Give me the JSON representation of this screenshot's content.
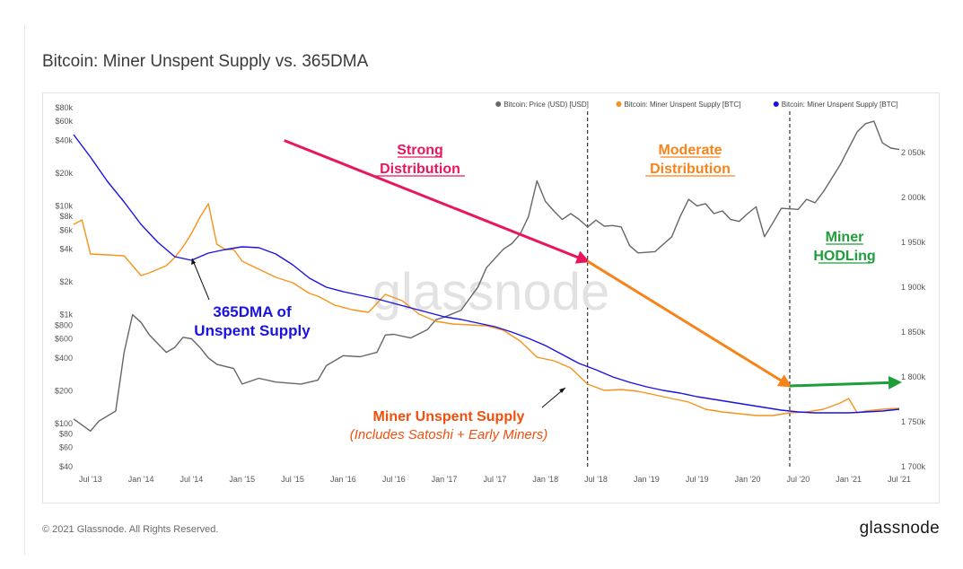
{
  "page": {
    "title": "Bitcoin: Miner Unspent Supply vs. 365DMA",
    "copyright": "© 2021 Glassnode. All Rights Reserved.",
    "brand": "glassnode",
    "watermark": "glassnode"
  },
  "colors": {
    "price": "#666666",
    "unspent": "#f7931a",
    "dma": "#1a12e0",
    "strong_arrow": "#e8175d",
    "moderate_arrow": "#f7841a",
    "hodl_arrow": "#1e9e3a",
    "unspent_label": "#f24e0c"
  },
  "chart_data": {
    "type": "line",
    "legend": [
      {
        "name": "Bitcoin: Price (USD) [USD]",
        "color": "#666666"
      },
      {
        "name": "Bitcoin: Miner Unspent Supply [BTC]",
        "color": "#f7931a"
      },
      {
        "name": "Bitcoin: Miner Unspent Supply [BTC]",
        "color": "#1a12e0"
      }
    ],
    "legend_position": "top-right",
    "x_ticks": [
      "Jul '13",
      "Jan '14",
      "Jul '14",
      "Jan '15",
      "Jul '15",
      "Jan '16",
      "Jul '16",
      "Jan '17",
      "Jul '17",
      "Jan '18",
      "Jul '18",
      "Jan '19",
      "Jul '19",
      "Jan '20",
      "Jul '20",
      "Jan '21",
      "Jul '21"
    ],
    "x_range": [
      "2013-05",
      "2021-07"
    ],
    "left_axis": {
      "scale": "log",
      "range": [
        40,
        80000
      ],
      "ticks": [
        "$40",
        "$60",
        "$80",
        "$100",
        "$200",
        "$400",
        "$600",
        "$800",
        "$1k",
        "$2k",
        "$4k",
        "$6k",
        "$8k",
        "$10k",
        "$20k",
        "$40k",
        "$60k",
        "$80k"
      ]
    },
    "right_axis": {
      "scale": "linear",
      "range": [
        1700000,
        2100000
      ],
      "ticks": [
        "1 700k",
        "1 750k",
        "1 800k",
        "1 850k",
        "1 900k",
        "1 950k",
        "2 000k",
        "2 050k"
      ]
    },
    "series": [
      {
        "name": "Bitcoin: Price (USD) [USD]",
        "axis": "left",
        "x": [
          "2013-05",
          "2013-07",
          "2013-08",
          "2013-10",
          "2013-11",
          "2013-12",
          "2014-01",
          "2014-02",
          "2014-04",
          "2014-05",
          "2014-06",
          "2014-07",
          "2014-08",
          "2014-09",
          "2014-10",
          "2014-12",
          "2015-01",
          "2015-03",
          "2015-05",
          "2015-08",
          "2015-10",
          "2015-11",
          "2016-01",
          "2016-03",
          "2016-05",
          "2016-06",
          "2016-07",
          "2016-09",
          "2016-11",
          "2016-12",
          "2017-01",
          "2017-03",
          "2017-05",
          "2017-06",
          "2017-08",
          "2017-09",
          "2017-10",
          "2017-11",
          "2017-12",
          "2018-01",
          "2018-02",
          "2018-03",
          "2018-04",
          "2018-05",
          "2018-06",
          "2018-07",
          "2018-08",
          "2018-09",
          "2018-10",
          "2018-11",
          "2018-12",
          "2019-02",
          "2019-04",
          "2019-05",
          "2019-06",
          "2019-07",
          "2019-08",
          "2019-09",
          "2019-10",
          "2019-11",
          "2019-12",
          "2020-01",
          "2020-02",
          "2020-03",
          "2020-04",
          "2020-05",
          "2020-07",
          "2020-08",
          "2020-09",
          "2020-10",
          "2020-11",
          "2020-12",
          "2021-01",
          "2021-02",
          "2021-03",
          "2021-04",
          "2021-05",
          "2021-06",
          "2021-07"
        ],
        "values": [
          110,
          85,
          105,
          130,
          450,
          1000,
          850,
          650,
          450,
          500,
          620,
          600,
          500,
          400,
          350,
          320,
          230,
          260,
          240,
          230,
          250,
          340,
          420,
          410,
          450,
          650,
          660,
          610,
          730,
          900,
          950,
          1100,
          1800,
          2700,
          4000,
          4500,
          5500,
          8000,
          17000,
          11000,
          9000,
          7500,
          8500,
          7500,
          6400,
          7400,
          6500,
          6600,
          6400,
          4300,
          3700,
          3800,
          5200,
          8000,
          11500,
          10000,
          10500,
          8500,
          9000,
          7500,
          7200,
          8500,
          9800,
          5200,
          7000,
          9500,
          9300,
          11500,
          10700,
          13500,
          18000,
          24000,
          34000,
          48000,
          57000,
          60000,
          38000,
          34000,
          33000
        ]
      },
      {
        "name": "Bitcoin: Miner Unspent Supply [BTC]",
        "axis": "right",
        "x": [
          "2013-05",
          "2013-06",
          "2013-07",
          "2013-09",
          "2013-11",
          "2014-01",
          "2014-02",
          "2014-04",
          "2014-05",
          "2014-06",
          "2014-07",
          "2014-08",
          "2014-09",
          "2014-10",
          "2014-11",
          "2014-12",
          "2015-01",
          "2015-03",
          "2015-05",
          "2015-07",
          "2015-09",
          "2015-10",
          "2015-12",
          "2016-02",
          "2016-04",
          "2016-06",
          "2016-08",
          "2016-10",
          "2016-12",
          "2017-02",
          "2017-04",
          "2017-06",
          "2017-08",
          "2017-10",
          "2017-12",
          "2018-02",
          "2018-04",
          "2018-06",
          "2018-08",
          "2018-10",
          "2018-12",
          "2019-02",
          "2019-04",
          "2019-06",
          "2019-08",
          "2019-10",
          "2019-12",
          "2020-02",
          "2020-04",
          "2020-06",
          "2020-08",
          "2020-10",
          "2020-12",
          "2021-01",
          "2021-02",
          "2021-03",
          "2021-05",
          "2021-07"
        ],
        "values": [
          1970000,
          1975000,
          1937000,
          1936000,
          1935000,
          1913000,
          1916000,
          1924000,
          1933000,
          1945000,
          1960000,
          1978000,
          1993000,
          1948000,
          1942000,
          1942000,
          1929000,
          1920000,
          1911000,
          1905000,
          1893000,
          1890000,
          1880000,
          1875000,
          1872000,
          1892000,
          1885000,
          1870000,
          1862000,
          1859000,
          1858000,
          1857000,
          1852000,
          1840000,
          1822000,
          1818000,
          1810000,
          1792000,
          1785000,
          1786000,
          1784000,
          1780000,
          1776000,
          1772000,
          1764000,
          1761000,
          1759000,
          1757000,
          1757000,
          1760000,
          1761000,
          1764000,
          1771000,
          1776000,
          1760000,
          1762000,
          1764000,
          1765000
        ]
      },
      {
        "name": "365DMA of Unspent Supply",
        "axis": "right",
        "x": [
          "2013-05",
          "2013-07",
          "2013-09",
          "2013-11",
          "2014-01",
          "2014-03",
          "2014-05",
          "2014-07",
          "2014-09",
          "2014-11",
          "2015-01",
          "2015-03",
          "2015-05",
          "2015-07",
          "2015-09",
          "2015-11",
          "2016-01",
          "2016-03",
          "2016-05",
          "2016-07",
          "2016-09",
          "2016-11",
          "2017-01",
          "2017-03",
          "2017-05",
          "2017-07",
          "2017-09",
          "2017-11",
          "2018-01",
          "2018-03",
          "2018-05",
          "2018-07",
          "2018-09",
          "2018-11",
          "2019-01",
          "2019-03",
          "2019-05",
          "2019-07",
          "2019-09",
          "2019-11",
          "2020-01",
          "2020-03",
          "2020-05",
          "2020-07",
          "2020-09",
          "2020-11",
          "2021-01",
          "2021-03",
          "2021-05",
          "2021-07"
        ],
        "values": [
          2070000,
          2045000,
          2018000,
          1995000,
          1970000,
          1950000,
          1934000,
          1930000,
          1938000,
          1942000,
          1945000,
          1944000,
          1937000,
          1925000,
          1910000,
          1900000,
          1895000,
          1891000,
          1887000,
          1882000,
          1877000,
          1872000,
          1867000,
          1864000,
          1860000,
          1856000,
          1850000,
          1843000,
          1835000,
          1825000,
          1815000,
          1808000,
          1800000,
          1794000,
          1789000,
          1785000,
          1782000,
          1778000,
          1775000,
          1772000,
          1769000,
          1766000,
          1763000,
          1761000,
          1760000,
          1760000,
          1760000,
          1761000,
          1762000,
          1764000
        ]
      }
    ],
    "vertical_markers": [
      "2018-06",
      "2020-06"
    ],
    "arrows": [
      {
        "name": "strong",
        "from": [
          "2015-06",
          40000
        ],
        "to": [
          "2018-06",
          3100
        ],
        "color": "#e8175d"
      },
      {
        "name": "moderate",
        "from": [
          "2018-06",
          3100
        ],
        "to": [
          "2020-06",
          1790000
        ],
        "color": "#f7841a"
      },
      {
        "name": "hodl",
        "from": [
          "2020-06",
          1790000
        ],
        "to": [
          "2021-07",
          1794000
        ],
        "color": "#1e9e3a"
      }
    ],
    "annotations": {
      "strong": [
        "Strong",
        "Distribution"
      ],
      "moderate": [
        "Moderate",
        "Distribution"
      ],
      "hodl": [
        "Miner",
        "HODLing"
      ],
      "dma": [
        "365DMA of",
        "Unspent Supply"
      ],
      "unspent": [
        "Miner Unspent Supply",
        "(Includes Satoshi + Early Miners)"
      ]
    }
  }
}
